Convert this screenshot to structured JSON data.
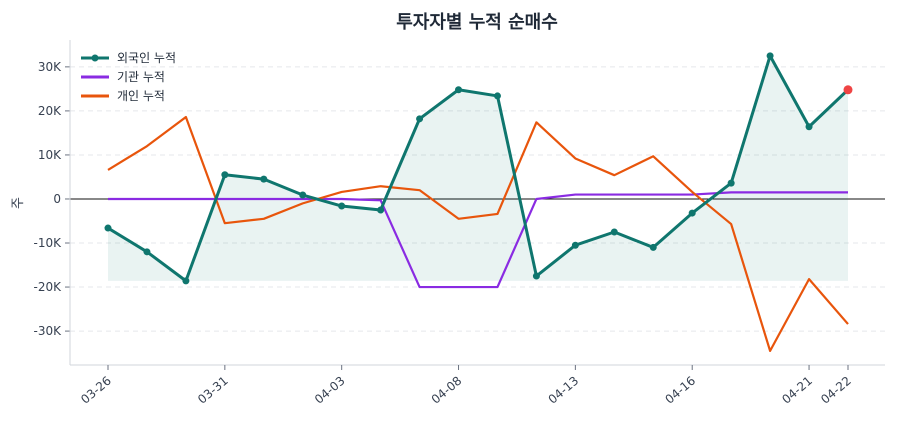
{
  "chart_data": {
    "type": "line",
    "title": "투자자별 누적 순매수",
    "ylabel": "주",
    "xlabel": "",
    "ylim": [
      -37700,
      36100
    ],
    "yticks": [
      -30000,
      -20000,
      -10000,
      0,
      10000,
      20000,
      30000
    ],
    "ytick_labels": [
      "-30K",
      "-20K",
      "-10K",
      "0",
      "10K",
      "20K",
      "30K"
    ],
    "x": [
      "03-26",
      "03-27",
      "03-30",
      "03-31",
      "04-01",
      "04-02",
      "04-03",
      "04-06",
      "04-07",
      "04-08",
      "04-09",
      "04-10",
      "04-13",
      "04-14",
      "04-15",
      "04-16",
      "04-17",
      "04-20",
      "04-21",
      "04-22"
    ],
    "xtick_labels": [
      "03-26",
      "03-31",
      "04-03",
      "04-08",
      "04-13",
      "04-16",
      "04-21",
      "04-22"
    ],
    "grid": "horizontal dashed",
    "legend": "top-left",
    "series": [
      {
        "name": "외국인 누적",
        "color": "#0f766e",
        "markers": true,
        "fill": true,
        "values": [
          -6600,
          -12000,
          -18600,
          5500,
          4500,
          900,
          -1600,
          -2500,
          18200,
          24800,
          23400,
          -17500,
          -10500,
          -7500,
          -11000,
          -3200,
          3600,
          32500,
          16400,
          24800
        ]
      },
      {
        "name": "기관 누적",
        "color": "#8a2be2",
        "values": [
          0,
          0,
          0,
          0,
          0,
          0,
          0,
          -300,
          -20000,
          -20000,
          -20000,
          0,
          1000,
          1000,
          1000,
          1000,
          1500,
          1500,
          1500,
          1500
        ]
      },
      {
        "name": "개인 누적",
        "color": "#e8550c",
        "values": [
          6600,
          12000,
          18600,
          -5500,
          -4500,
          -1000,
          1600,
          2900,
          2000,
          -4500,
          -3400,
          17400,
          9200,
          5400,
          9700,
          1600,
          -5700,
          -34500,
          -18200,
          -28400
        ]
      }
    ],
    "last_point_highlight_color": "#ef4444"
  }
}
